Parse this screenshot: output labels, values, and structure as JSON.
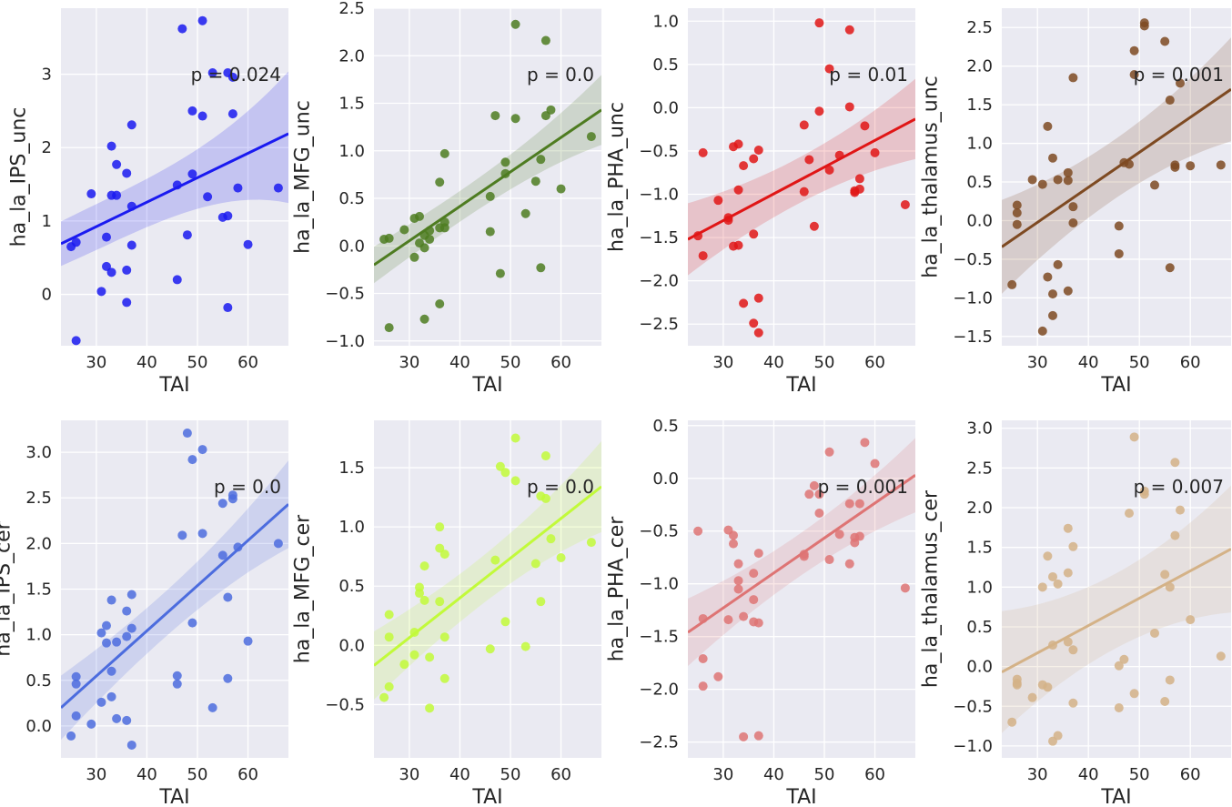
{
  "chart_data": [
    {
      "type": "scatter",
      "xlabel": "TAI",
      "ylabel": "ha_la_IPS_unc",
      "annotation": "p = 0.024",
      "color": "#1a1af0",
      "xlim": [
        23,
        68
      ],
      "ylim": [
        -0.7,
        3.9
      ],
      "xticks": [
        "30",
        "40",
        "50",
        "60"
      ],
      "yticks": [
        "0",
        "1",
        "2",
        "3"
      ],
      "fit": [
        [
          23,
          0.69
        ],
        [
          68,
          2.19
        ]
      ],
      "band_lo": [
        0.5,
        1.6
      ],
      "band_hi": [
        0.88,
        2.72
      ],
      "x": [
        25,
        26,
        26,
        29,
        31,
        32,
        32,
        33,
        33,
        33,
        34,
        34,
        36,
        36,
        36,
        37,
        37,
        37,
        46,
        46,
        47,
        48,
        49,
        49,
        51,
        51,
        52,
        53,
        55,
        56,
        56,
        56,
        57,
        57,
        58,
        60,
        66
      ],
      "y": [
        0.65,
        0.71,
        -0.63,
        1.37,
        0.04,
        0.78,
        0.38,
        1.35,
        0.3,
        2.02,
        1.77,
        1.35,
        1.65,
        0.33,
        -0.11,
        2.31,
        1.2,
        0.67,
        0.2,
        1.49,
        3.62,
        0.81,
        2.5,
        1.64,
        3.73,
        2.43,
        1.33,
        3.02,
        1.05,
        1.07,
        -0.18,
        3.02,
        2.46,
        2.96,
        1.45,
        0.68,
        1.45
      ]
    },
    {
      "type": "scatter",
      "xlabel": "TAI",
      "ylabel": "ha_la_MFG_unc",
      "annotation": "p = 0.0",
      "color": "#4e7c21",
      "xlim": [
        23,
        68
      ],
      "ylim": [
        -1.05,
        2.5
      ],
      "xticks": [
        "30",
        "40",
        "50",
        "60"
      ],
      "yticks": [
        "−1.0",
        "−0.5",
        "0.0",
        "0.5",
        "1.0",
        "1.5",
        "2.0",
        "2.5"
      ],
      "fit": [
        [
          23,
          -0.2
        ],
        [
          68,
          1.43
        ]
      ],
      "band_lo": [
        -0.32,
        1.2
      ],
      "band_hi": [
        -0.08,
        1.66
      ],
      "x": [
        25,
        26,
        26,
        29,
        31,
        31,
        32,
        32,
        33,
        33,
        33,
        34,
        34,
        36,
        36,
        36,
        37,
        37,
        37,
        46,
        46,
        47,
        48,
        49,
        49,
        51,
        51,
        53,
        55,
        56,
        56,
        57,
        57,
        58,
        60,
        66
      ],
      "y": [
        0.07,
        0.08,
        -0.86,
        0.17,
        0.29,
        -0.12,
        0.31,
        0.03,
        0.11,
        -0.02,
        -0.77,
        0.07,
        0.16,
        0.67,
        0.19,
        -0.61,
        0.97,
        0.25,
        0.19,
        0.15,
        0.52,
        1.37,
        -0.29,
        0.76,
        0.88,
        1.34,
        2.33,
        0.34,
        0.68,
        0.91,
        -0.23,
        2.16,
        1.37,
        1.43,
        0.6,
        1.15
      ]
    },
    {
      "type": "scatter",
      "xlabel": "TAI",
      "ylabel": "ha_la_PHA_unc",
      "annotation": "p = 0.01",
      "color": "#e01616",
      "xlim": [
        23,
        68
      ],
      "ylim": [
        -2.75,
        1.15
      ],
      "xticks": [
        "30",
        "40",
        "50",
        "60"
      ],
      "yticks": [
        "−2.5",
        "−2.0",
        "−1.5",
        "−1.0",
        "−0.5",
        "0.0",
        "0.5",
        "1.0"
      ],
      "fit": [
        [
          23,
          -1.52
        ],
        [
          68,
          -0.13
        ]
      ],
      "band_lo": [
        -1.78,
        -0.42
      ],
      "band_hi": [
        -1.26,
        0.16
      ],
      "x": [
        25,
        26,
        26,
        29,
        31,
        31,
        32,
        32,
        33,
        33,
        33,
        34,
        34,
        36,
        36,
        36,
        37,
        37,
        37,
        46,
        46,
        47,
        48,
        49,
        49,
        51,
        51,
        53,
        55,
        55,
        56,
        56,
        57,
        57,
        58,
        60,
        66
      ],
      "y": [
        -1.48,
        -0.52,
        -1.71,
        -1.07,
        -1.3,
        -1.27,
        -0.45,
        -1.6,
        -0.42,
        -0.95,
        -1.59,
        -0.67,
        -2.26,
        -0.59,
        -1.46,
        -2.49,
        -0.49,
        -2.2,
        -2.6,
        -0.2,
        -0.97,
        -0.6,
        -1.37,
        -0.04,
        0.98,
        -0.72,
        0.45,
        -0.55,
        0.9,
        0.01,
        -0.96,
        -0.98,
        -0.82,
        -0.94,
        -0.21,
        -0.52,
        -1.12
      ]
    },
    {
      "type": "scatter",
      "xlabel": "TAI",
      "ylabel": "ha_la_thalamus_unc",
      "annotation": "p = 0.001",
      "color": "#7e4a22",
      "xlim": [
        23,
        68
      ],
      "ylim": [
        -1.62,
        2.75
      ],
      "xticks": [
        "30",
        "40",
        "50",
        "60"
      ],
      "yticks": [
        "−1.5",
        "−1.0",
        "−0.5",
        "0.0",
        "0.5",
        "1.0",
        "1.5",
        "2.0",
        "2.5"
      ],
      "fit": [
        [
          23,
          -0.34
        ],
        [
          68,
          1.7
        ]
      ],
      "band_lo": [
        -0.72,
        1.28
      ],
      "band_hi": [
        0.04,
        2.12
      ],
      "x": [
        25,
        26,
        26,
        26,
        29,
        31,
        31,
        32,
        32,
        33,
        33,
        33,
        34,
        34,
        36,
        36,
        36,
        37,
        37,
        37,
        46,
        46,
        47,
        48,
        49,
        49,
        51,
        51,
        53,
        55,
        56,
        56,
        57,
        57,
        58,
        60,
        66
      ],
      "y": [
        -0.83,
        0.2,
        0.1,
        -0.05,
        0.53,
        0.47,
        -1.43,
        1.22,
        -0.73,
        0.81,
        -0.95,
        -1.23,
        0.53,
        -0.57,
        0.52,
        0.62,
        -0.91,
        1.85,
        0.18,
        -0.03,
        -0.07,
        -0.43,
        0.75,
        0.73,
        2.2,
        1.89,
        2.56,
        2.52,
        0.46,
        2.32,
        1.56,
        -0.61,
        0.72,
        0.69,
        1.78,
        0.71,
        0.72
      ]
    },
    {
      "type": "scatter",
      "xlabel": "TAI",
      "ylabel": "ha_la_IPS_cer",
      "annotation": "p = 0.0",
      "color": "#4c6cde",
      "xlim": [
        23,
        68
      ],
      "ylim": [
        -0.35,
        3.35
      ],
      "xticks": [
        "30",
        "40",
        "50",
        "60"
      ],
      "yticks": [
        "0.0",
        "0.5",
        "1.0",
        "1.5",
        "2.0",
        "2.5",
        "3.0"
      ],
      "fit": [
        [
          23,
          0.2
        ],
        [
          68,
          2.43
        ]
      ],
      "band_lo": [
        -0.02,
        2.13
      ],
      "band_hi": [
        0.42,
        2.73
      ],
      "x": [
        25,
        26,
        26,
        26,
        29,
        31,
        31,
        32,
        32,
        33,
        33,
        33,
        34,
        34,
        36,
        36,
        36,
        37,
        37,
        37,
        46,
        46,
        47,
        48,
        49,
        49,
        51,
        51,
        53,
        55,
        55,
        56,
        56,
        57,
        57,
        58,
        60,
        66
      ],
      "y": [
        -0.11,
        0.54,
        0.46,
        0.11,
        0.02,
        1.02,
        0.26,
        1.1,
        0.91,
        1.38,
        0.6,
        0.32,
        0.92,
        0.08,
        1.26,
        0.98,
        0.06,
        1.44,
        1.07,
        -0.21,
        0.55,
        0.46,
        2.09,
        3.21,
        2.92,
        1.13,
        3.03,
        2.11,
        0.2,
        2.44,
        1.87,
        1.41,
        0.52,
        2.53,
        2.49,
        1.96,
        0.93,
        2.0
      ]
    },
    {
      "type": "scatter",
      "xlabel": "TAI",
      "ylabel": "ha_la_MFG_cer",
      "annotation": "p = 0.0",
      "color": "#c2fa3a",
      "xlim": [
        23,
        68
      ],
      "ylim": [
        -0.95,
        1.9
      ],
      "xticks": [
        "30",
        "40",
        "50",
        "60"
      ],
      "yticks": [
        "−0.5",
        "0.0",
        "0.5",
        "1.0",
        "1.5"
      ],
      "fit": [
        [
          23,
          -0.17
        ],
        [
          68,
          1.34
        ]
      ],
      "band_lo": [
        -0.35,
        1.1
      ],
      "band_hi": [
        0.01,
        1.58
      ],
      "x": [
        25,
        26,
        26,
        26,
        29,
        31,
        31,
        32,
        32,
        33,
        33,
        34,
        34,
        36,
        36,
        36,
        37,
        37,
        37,
        46,
        47,
        48,
        49,
        49,
        51,
        51,
        53,
        55,
        56,
        56,
        57,
        57,
        58,
        60,
        66
      ],
      "y": [
        -0.44,
        0.26,
        0.07,
        -0.35,
        -0.16,
        0.11,
        -0.08,
        0.49,
        0.44,
        0.67,
        0.38,
        -0.53,
        -0.1,
        1.0,
        0.82,
        0.37,
        0.77,
        0.07,
        -0.28,
        -0.03,
        0.72,
        1.51,
        1.46,
        0.2,
        1.75,
        1.39,
        -0.01,
        0.69,
        1.26,
        0.37,
        1.6,
        1.24,
        0.9,
        0.74,
        0.87
      ]
    },
    {
      "type": "scatter",
      "xlabel": "TAI",
      "ylabel": "ha_la_PHA_cer",
      "annotation": "p = 0.001",
      "color": "#de7474",
      "xlim": [
        23,
        68
      ],
      "ylim": [
        -2.65,
        0.55
      ],
      "xticks": [
        "30",
        "40",
        "50",
        "60"
      ],
      "yticks": [
        "−2.5",
        "−2.0",
        "−1.5",
        "−1.0",
        "−0.5",
        "0.0",
        "0.5"
      ],
      "fit": [
        [
          23,
          -1.46
        ],
        [
          68,
          0.03
        ]
      ],
      "band_lo": [
        -1.66,
        -0.19
      ],
      "band_hi": [
        -1.26,
        0.25
      ],
      "x": [
        25,
        26,
        26,
        26,
        29,
        31,
        31,
        32,
        32,
        33,
        33,
        33,
        34,
        34,
        36,
        36,
        36,
        37,
        37,
        37,
        46,
        46,
        47,
        48,
        49,
        49,
        51,
        51,
        53,
        55,
        55,
        56,
        56,
        57,
        57,
        58,
        60,
        66
      ],
      "y": [
        -0.5,
        -1.33,
        -1.71,
        -1.97,
        -1.88,
        -0.49,
        -1.34,
        -0.54,
        -0.62,
        -0.81,
        -0.97,
        -1.05,
        -1.31,
        -2.45,
        -0.9,
        -1.15,
        -1.36,
        -0.71,
        -1.37,
        -2.44,
        -0.74,
        -0.72,
        -0.15,
        -0.07,
        -0.15,
        -0.33,
        0.25,
        -0.77,
        -0.53,
        -0.24,
        -0.81,
        -0.56,
        -0.61,
        -0.24,
        -0.55,
        0.34,
        0.14,
        -1.04
      ]
    },
    {
      "type": "scatter",
      "xlabel": "TAI",
      "ylabel": "ha_la_thalamus_cer",
      "annotation": "p = 0.007",
      "color": "#d4b287",
      "xlim": [
        23,
        68
      ],
      "ylim": [
        -1.15,
        3.1
      ],
      "xticks": [
        "30",
        "40",
        "50",
        "60"
      ],
      "yticks": [
        "−1.0",
        "−0.5",
        "0.0",
        "0.5",
        "1.0",
        "1.5",
        "2.0",
        "2.5",
        "3.0"
      ],
      "fit": [
        [
          23,
          -0.07
        ],
        [
          68,
          1.48
        ]
      ],
      "band_lo": [
        -0.55,
        0.98
      ],
      "band_hi": [
        0.41,
        1.98
      ],
      "x": [
        25,
        26,
        26,
        26,
        29,
        31,
        31,
        32,
        32,
        33,
        33,
        33,
        34,
        34,
        36,
        36,
        36,
        37,
        37,
        37,
        46,
        46,
        47,
        48,
        49,
        49,
        51,
        51,
        53,
        55,
        55,
        56,
        56,
        57,
        57,
        58,
        60,
        66
      ],
      "y": [
        -0.7,
        -0.16,
        -0.21,
        -0.23,
        -0.39,
        1.0,
        -0.23,
        1.39,
        -0.26,
        1.13,
        0.27,
        -0.94,
        1.04,
        -0.87,
        1.74,
        1.18,
        0.31,
        1.51,
        0.21,
        -0.46,
        -0.52,
        0.01,
        0.09,
        1.93,
        2.89,
        -0.34,
        2.17,
        2.21,
        0.42,
        1.16,
        -0.44,
        1.0,
        -0.17,
        2.57,
        1.65,
        1.97,
        0.59,
        0.13
      ]
    }
  ]
}
